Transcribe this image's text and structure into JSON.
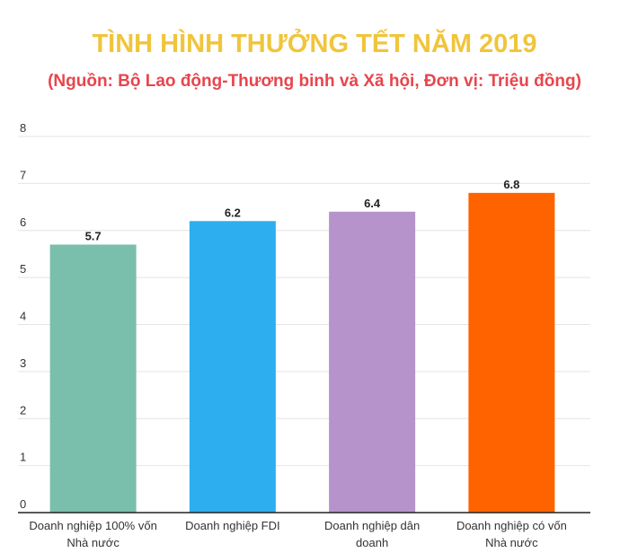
{
  "chart_data": {
    "type": "bar",
    "title": "TÌNH HÌNH THƯỞNG TẾT NĂM 2019",
    "subtitle": "(Nguồn: Bộ Lao động-Thương binh và Xã hội, Đơn vị: Triệu đồng)",
    "categories": [
      [
        "Doanh nghiệp 100% vốn",
        "Nhà nước"
      ],
      [
        "Doanh nghiệp FDI"
      ],
      [
        "Doanh nghiệp dân",
        "doanh"
      ],
      [
        "Doanh nghiệp có vốn",
        "Nhà nước"
      ]
    ],
    "values": [
      5.7,
      6.2,
      6.4,
      6.8
    ],
    "colors": [
      "#7abfab",
      "#2caeef",
      "#b693cb",
      "#ff6300"
    ],
    "ylim": [
      0,
      8
    ],
    "yticks": [
      0,
      1,
      2,
      3,
      4,
      5,
      6,
      7,
      8
    ],
    "grid": true,
    "xlabel": "",
    "ylabel": ""
  }
}
